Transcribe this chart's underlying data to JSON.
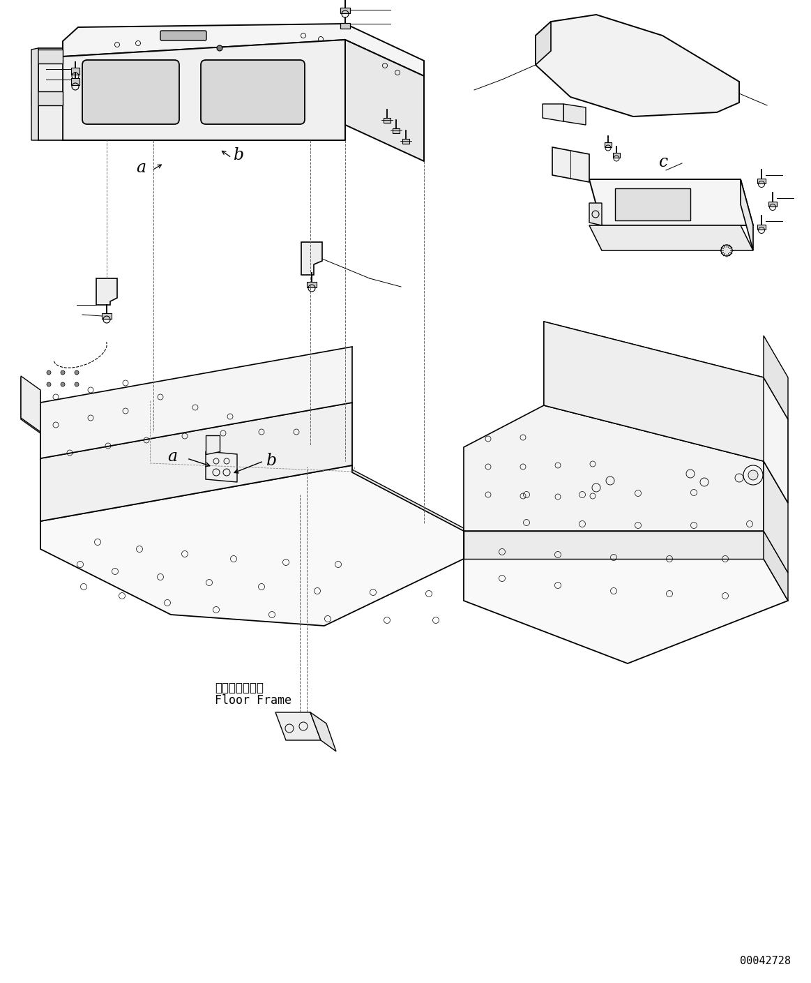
{
  "figure_id": "00042728",
  "bg": "#ffffff",
  "lc": "#000000",
  "figsize": [
    11.63,
    14.09
  ],
  "dpi": 100,
  "label_a": "a",
  "label_b": "b",
  "label_c": "c",
  "floor_jp": "フロアフレーム",
  "floor_en": "Floor Frame"
}
